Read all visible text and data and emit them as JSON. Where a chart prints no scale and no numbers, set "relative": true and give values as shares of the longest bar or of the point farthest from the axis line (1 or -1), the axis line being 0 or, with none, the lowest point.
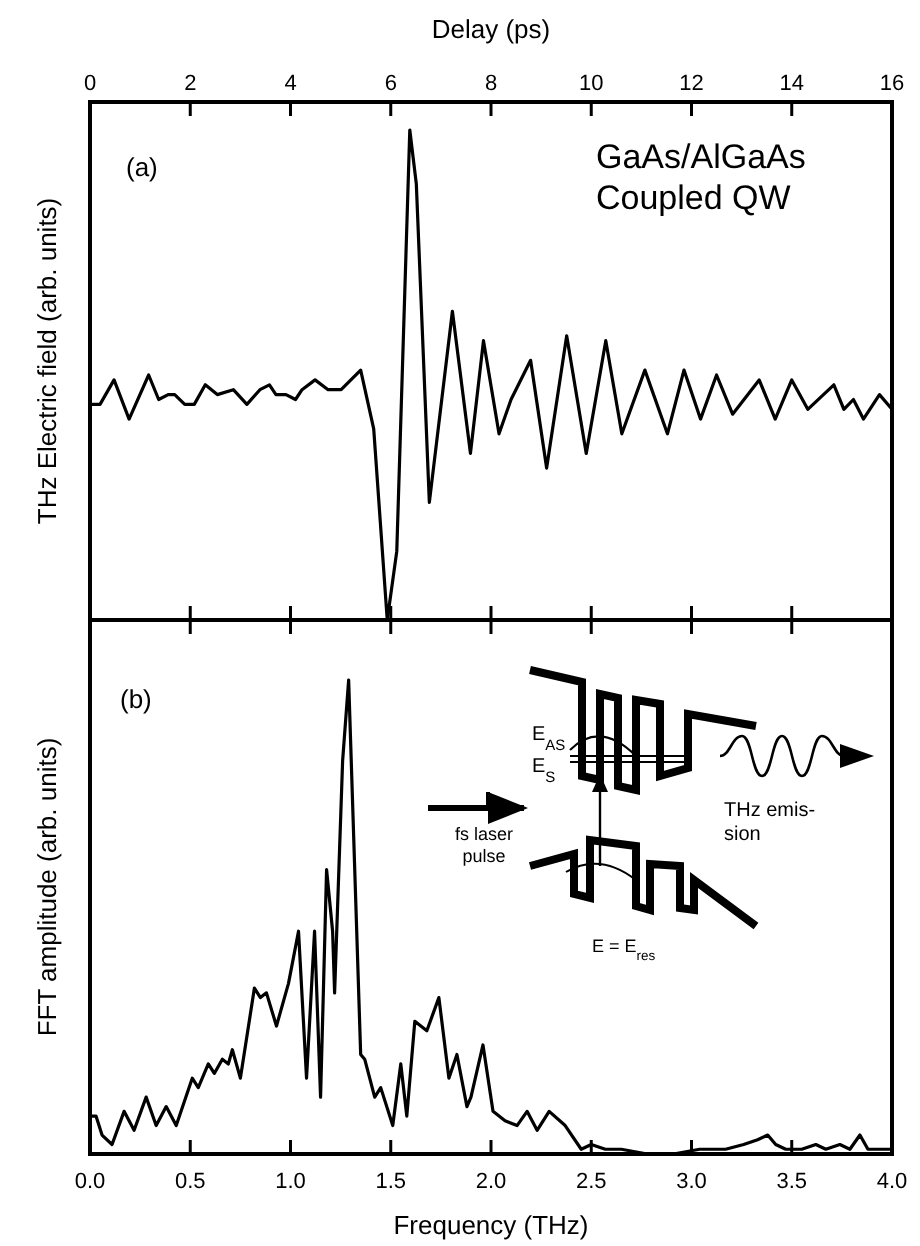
{
  "chart_data": [
    {
      "type": "line",
      "relative": true,
      "xlabel": "Delay (ps)",
      "ylabel": "THz Electric field (arb. units)",
      "xlim": [
        0,
        16
      ],
      "xticks": [
        0,
        2,
        4,
        6,
        8,
        10,
        12,
        14,
        16
      ],
      "tick_labels": "x",
      "marker": "none",
      "line_style": "solid",
      "annotations": [
        "(a)",
        "GaAs/AlGaAs\nCoupled QW"
      ],
      "series": [
        {
          "color": "#000000",
          "x": [
            0,
            0.2,
            0.48,
            0.78,
            1.17,
            1.37,
            1.56,
            1.69,
            1.89,
            2.08,
            2.3,
            2.54,
            2.86,
            3.13,
            3.39,
            3.58,
            3.71,
            3.91,
            4.1,
            4.23,
            4.49,
            4.75,
            5.01,
            5.4,
            5.66,
            5.93,
            6.12,
            6.38,
            6.51,
            6.77,
            7.23,
            7.59,
            7.85,
            8.16,
            8.4,
            8.79,
            9.11,
            9.51,
            9.9,
            10.29,
            10.61,
            11.07,
            11.52,
            11.85,
            12.18,
            12.5,
            12.82,
            13.35,
            13.67,
            14,
            14.32,
            14.84,
            15.04,
            15.23,
            15.43,
            15.75,
            16
          ],
          "values": [
            0.44,
            0.44,
            0.49,
            0.41,
            0.5,
            0.45,
            0.46,
            0.46,
            0.44,
            0.44,
            0.48,
            0.46,
            0.47,
            0.44,
            0.47,
            0.48,
            0.46,
            0.46,
            0.45,
            0.47,
            0.49,
            0.47,
            0.47,
            0.51,
            0.39,
            0,
            0.14,
            1,
            0.89,
            0.24,
            0.63,
            0.34,
            0.57,
            0.38,
            0.45,
            0.53,
            0.31,
            0.58,
            0.34,
            0.57,
            0.38,
            0.51,
            0.38,
            0.51,
            0.41,
            0.5,
            0.42,
            0.49,
            0.41,
            0.49,
            0.43,
            0.48,
            0.43,
            0.45,
            0.41,
            0.46,
            0.43
          ]
        }
      ]
    },
    {
      "type": "line",
      "relative": true,
      "xlabel": "Frequency (THz)",
      "ylabel": "FFT amplitude (arb. units)",
      "xlim": [
        0,
        4
      ],
      "xticks": [
        {
          "value": 0,
          "label": "0.0"
        },
        0.5,
        {
          "value": 1,
          "label": "1.0"
        },
        1.5,
        {
          "value": 2,
          "label": "2.0"
        },
        2.5,
        {
          "value": 3,
          "label": "3.0"
        },
        3.5,
        {
          "value": 4,
          "label": "4.0"
        }
      ],
      "tick_labels": "x",
      "marker": "none",
      "line_style": "solid",
      "annotations": [
        "(b)",
        "E$_{AS}$",
        "E$_{S}$",
        "fs laser\npulse",
        "THz emis-\nsion",
        "E = E$_{res}$"
      ],
      "series": [
        {
          "color": "#000000",
          "x": [
            0,
            0.03,
            0.06,
            0.11,
            0.17,
            0.22,
            0.28,
            0.33,
            0.38,
            0.43,
            0.51,
            0.54,
            0.59,
            0.62,
            0.66,
            0.69,
            0.71,
            0.75,
            0.82,
            0.85,
            0.88,
            0.93,
            0.99,
            1.04,
            1.08,
            1.12,
            1.15,
            1.18,
            1.21,
            1.22,
            1.26,
            1.29,
            1.35,
            1.37,
            1.42,
            1.45,
            1.51,
            1.55,
            1.58,
            1.62,
            1.68,
            1.74,
            1.79,
            1.83,
            1.88,
            1.9,
            1.96,
            2.01,
            2.07,
            2.13,
            2.18,
            2.23,
            2.29,
            2.37,
            2.45,
            2.5,
            2.57,
            2.65,
            2.78,
            2.91,
            3.04,
            3.17,
            3.26,
            3.33,
            3.38,
            3.42,
            3.47,
            3.55,
            3.62,
            3.67,
            3.74,
            3.79,
            3.84,
            3.88,
            3.96,
            4
          ],
          "values": [
            0.08,
            0.08,
            0.04,
            0.02,
            0.09,
            0.05,
            0.12,
            0.06,
            0.1,
            0.06,
            0.16,
            0.14,
            0.19,
            0.17,
            0.2,
            0.19,
            0.22,
            0.16,
            0.35,
            0.33,
            0.34,
            0.27,
            0.36,
            0.47,
            0.16,
            0.47,
            0.12,
            0.6,
            0.47,
            0.34,
            0.83,
            1,
            0.21,
            0.2,
            0.12,
            0.14,
            0.06,
            0.19,
            0.08,
            0.28,
            0.26,
            0.33,
            0.16,
            0.21,
            0.1,
            0.12,
            0.23,
            0.09,
            0.07,
            0.06,
            0.09,
            0.05,
            0.09,
            0.06,
            0.01,
            0.02,
            0.01,
            0.01,
            0,
            0,
            0.01,
            0.01,
            0.02,
            0.03,
            0.04,
            0.02,
            0.01,
            0.01,
            0.02,
            0.01,
            0.02,
            0.01,
            0.04,
            0.01,
            0.01,
            0.01
          ]
        }
      ]
    }
  ]
}
